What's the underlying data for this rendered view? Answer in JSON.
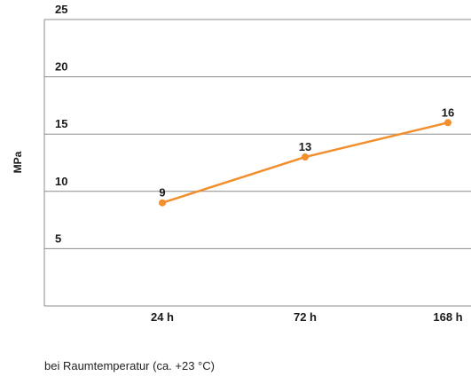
{
  "chart_data": {
    "type": "line",
    "title": "",
    "xlabel": "",
    "ylabel": "MPa",
    "categories": [
      "24 h",
      "72 h",
      "168 h"
    ],
    "series": [
      {
        "values": [
          9,
          13,
          16
        ],
        "color": "#f28e2b"
      }
    ],
    "ylim": [
      0,
      25
    ],
    "yticks": [
      5,
      10,
      15,
      20,
      25
    ],
    "grid": true,
    "legend": "none",
    "data_labels": true
  },
  "caption": "bei Raumtemperatur (ca. +23 °C)"
}
